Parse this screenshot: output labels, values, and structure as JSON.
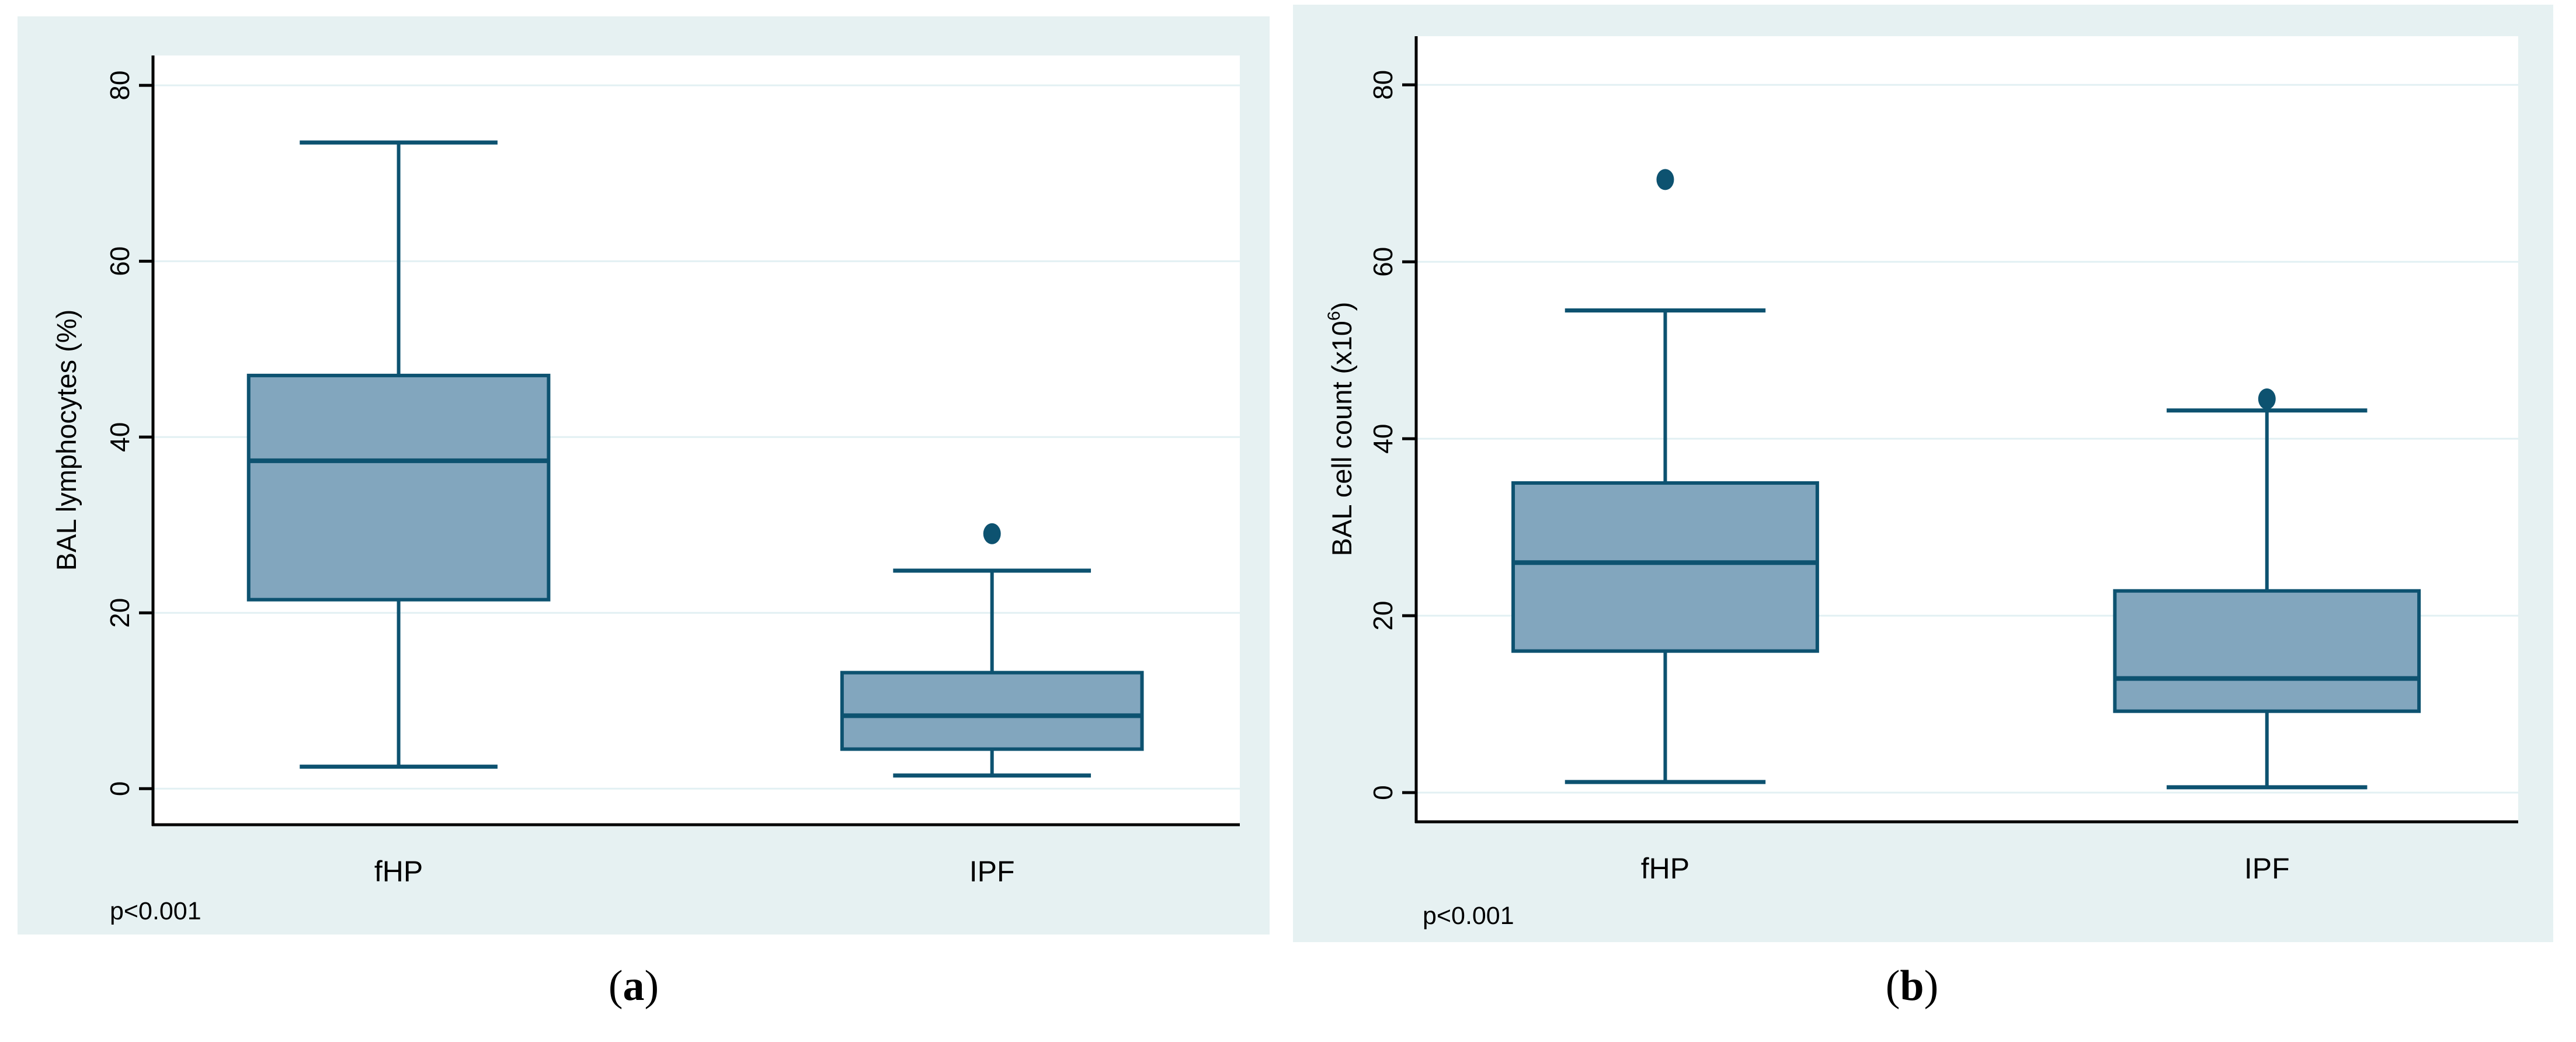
{
  "style": {
    "panel_bg": "#e6f1f2",
    "plot_bg": "#ffffff",
    "grid_color": "#e2f0f3",
    "box_fill": "#82a6be",
    "box_line": "#0d5270",
    "outlier_color": "#0d5270",
    "axis_color": "#000000",
    "text_color": "#000000"
  },
  "chart_data": [
    {
      "type": "box",
      "panel_label": "a",
      "ylabel": "BAL lymphocytes (%)",
      "ylabel_segments": [
        {
          "t": "BAL lymphocytes (%)",
          "sup": false
        }
      ],
      "xlabel": "",
      "categories": [
        "fHP",
        "IPF"
      ],
      "y_ticks": [
        0,
        20,
        40,
        60,
        80
      ],
      "ylim": [
        -4.1,
        83.4
      ],
      "grid": true,
      "legend_position": "none",
      "p_value": "p<0.001",
      "caption_open": "(",
      "caption_letter": "a",
      "caption_close": ")",
      "boxes": [
        {
          "category": "fHP",
          "whisker_low": 2.5,
          "q1": 21.5,
          "median": 37.3,
          "q3": 47.0,
          "whisker_high": 73.5,
          "outliers": []
        },
        {
          "category": "IPF",
          "whisker_low": 1.5,
          "q1": 4.5,
          "median": 8.3,
          "q3": 13.2,
          "whisker_high": 24.8,
          "outliers": [
            29.0
          ]
        }
      ]
    },
    {
      "type": "box",
      "panel_label": "b",
      "ylabel": "BAL cell count (x10^6)",
      "ylabel_segments": [
        {
          "t": "BAL cell count (x10",
          "sup": false
        },
        {
          "t": "6",
          "sup": true
        },
        {
          "t": ")",
          "sup": false
        }
      ],
      "xlabel": "",
      "categories": [
        "fHP",
        "IPF"
      ],
      "y_ticks": [
        0,
        20,
        40,
        60,
        80
      ],
      "ylim": [
        -3.3,
        85.5
      ],
      "grid": true,
      "legend_position": "none",
      "p_value": "p<0.001",
      "caption_open": "(",
      "caption_letter": "b",
      "caption_close": ")",
      "boxes": [
        {
          "category": "fHP",
          "whisker_low": 1.2,
          "q1": 16.0,
          "median": 26.0,
          "q3": 35.0,
          "whisker_high": 54.5,
          "outliers": [
            69.3
          ]
        },
        {
          "category": "IPF",
          "whisker_low": 0.6,
          "q1": 9.2,
          "median": 12.9,
          "q3": 22.8,
          "whisker_high": 43.2,
          "outliers": [
            44.5
          ]
        }
      ]
    }
  ]
}
